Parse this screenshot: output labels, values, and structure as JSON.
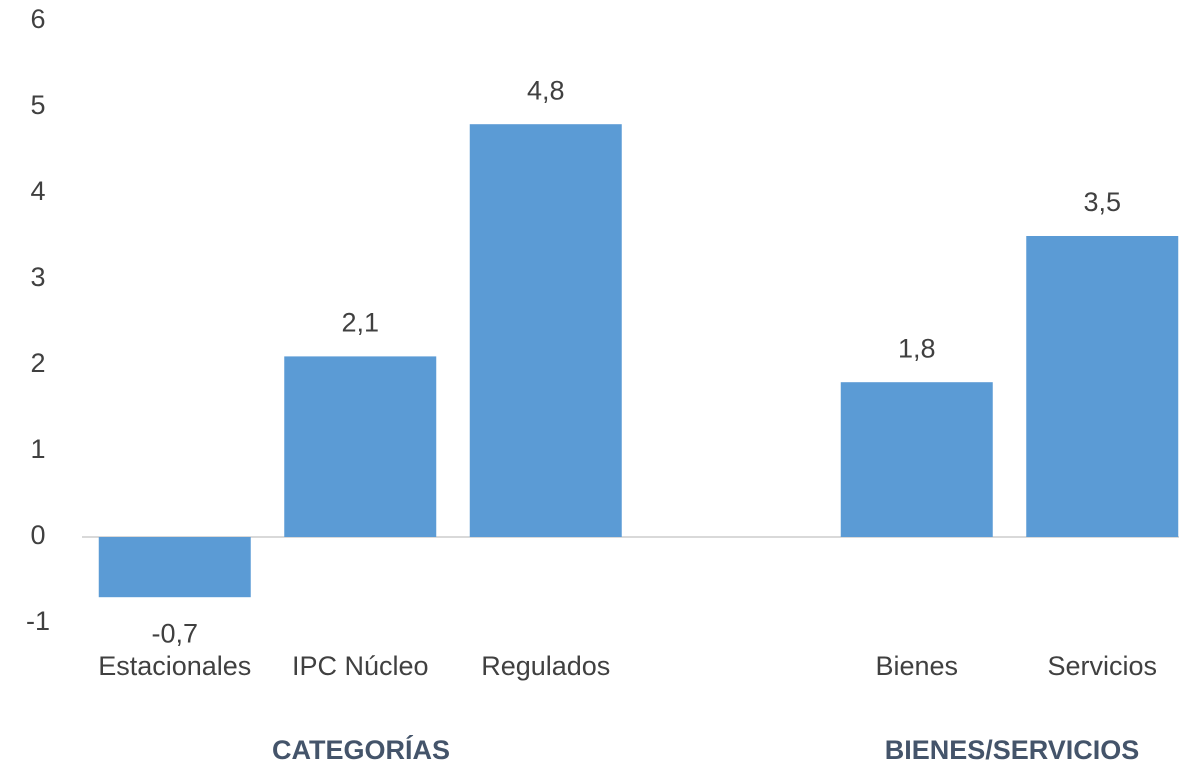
{
  "chart_data": {
    "type": "bar",
    "categories": [
      "Estacionales",
      "IPC Núcleo",
      "Regulados",
      null,
      "Bienes",
      "Servicios"
    ],
    "values": [
      -0.7,
      2.1,
      4.8,
      null,
      1.8,
      3.5
    ],
    "value_labels": [
      "-0,7",
      "2,1",
      "4,8",
      null,
      "1,8",
      "3,5"
    ],
    "color": "#5b9bd5",
    "ylim": [
      -1,
      6
    ],
    "yticks": [
      -1,
      0,
      1,
      2,
      3,
      4,
      5,
      6
    ],
    "grid": false,
    "annotations": [
      "CATEGORÍAS",
      "BIENES/SERVICIOS"
    ]
  }
}
